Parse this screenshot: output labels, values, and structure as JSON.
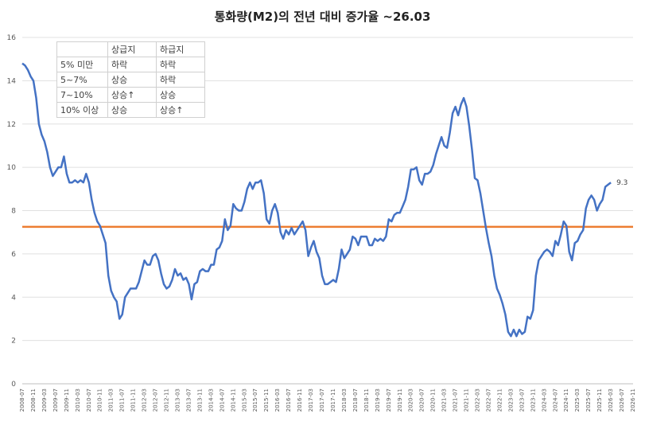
{
  "chart_data": {
    "type": "line",
    "title": "통화량(M2)의 전년 대비 증가율 ~26.03",
    "ylim": [
      0,
      16
    ],
    "yticks": [
      "0",
      "2",
      "4",
      "6",
      "8",
      "10",
      "12",
      "14",
      "16"
    ],
    "xlim": [
      "2008-07",
      "2026-11"
    ],
    "xticks": [
      "2008-07",
      "2008-11",
      "2009-03",
      "2009-07",
      "2009-11",
      "2010-03",
      "2010-07",
      "2010-11",
      "2011-03",
      "2011-07",
      "2011-11",
      "2012-03",
      "2012-07",
      "2012-11",
      "2013-03",
      "2013-07",
      "2013-11",
      "2014-03",
      "2014-07",
      "2014-11",
      "2015-03",
      "2015-07",
      "2015-11",
      "2016-03",
      "2016-07",
      "2016-11",
      "2017-03",
      "2017-07",
      "2017-11",
      "2018-03",
      "2018-07",
      "2018-11",
      "2019-03",
      "2019-07",
      "2019-11",
      "2020-03",
      "2020-07",
      "2020-11",
      "2021-03",
      "2021-07",
      "2021-11",
      "2022-03",
      "2022-07",
      "2022-11",
      "2023-03",
      "2023-07",
      "2023-11",
      "2024-03",
      "2024-07",
      "2024-11",
      "2025-03",
      "2025-07",
      "2025-11",
      "2026-03",
      "2026-07",
      "2026-11"
    ],
    "series": [
      {
        "color": "#4472C4",
        "points": [
          [
            "2008-07",
            14.8
          ],
          [
            "2008-08",
            14.7
          ],
          [
            "2008-09",
            14.5
          ],
          [
            "2008-10",
            14.2
          ],
          [
            "2008-11",
            14.0
          ],
          [
            "2008-12",
            13.2
          ],
          [
            "2009-01",
            12.0
          ],
          [
            "2009-02",
            11.5
          ],
          [
            "2009-03",
            11.2
          ],
          [
            "2009-04",
            10.7
          ],
          [
            "2009-05",
            10.0
          ],
          [
            "2009-06",
            9.6
          ],
          [
            "2009-07",
            9.8
          ],
          [
            "2009-08",
            10.0
          ],
          [
            "2009-09",
            10.0
          ],
          [
            "2009-10",
            10.5
          ],
          [
            "2009-11",
            9.7
          ],
          [
            "2009-12",
            9.3
          ],
          [
            "2010-01",
            9.3
          ],
          [
            "2010-02",
            9.4
          ],
          [
            "2010-03",
            9.3
          ],
          [
            "2010-04",
            9.4
          ],
          [
            "2010-05",
            9.3
          ],
          [
            "2010-06",
            9.7
          ],
          [
            "2010-07",
            9.3
          ],
          [
            "2010-08",
            8.5
          ],
          [
            "2010-09",
            7.9
          ],
          [
            "2010-10",
            7.5
          ],
          [
            "2010-11",
            7.3
          ],
          [
            "2010-12",
            6.9
          ],
          [
            "2011-01",
            6.5
          ],
          [
            "2011-02",
            5.0
          ],
          [
            "2011-03",
            4.3
          ],
          [
            "2011-04",
            4.0
          ],
          [
            "2011-05",
            3.8
          ],
          [
            "2011-06",
            3.0
          ],
          [
            "2011-07",
            3.2
          ],
          [
            "2011-08",
            4.0
          ],
          [
            "2011-09",
            4.2
          ],
          [
            "2011-10",
            4.4
          ],
          [
            "2011-11",
            4.4
          ],
          [
            "2011-12",
            4.4
          ],
          [
            "2012-01",
            4.7
          ],
          [
            "2012-02",
            5.2
          ],
          [
            "2012-03",
            5.7
          ],
          [
            "2012-04",
            5.5
          ],
          [
            "2012-05",
            5.5
          ],
          [
            "2012-06",
            5.9
          ],
          [
            "2012-07",
            6.0
          ],
          [
            "2012-08",
            5.7
          ],
          [
            "2012-09",
            5.1
          ],
          [
            "2012-10",
            4.6
          ],
          [
            "2012-11",
            4.4
          ],
          [
            "2012-12",
            4.5
          ],
          [
            "2013-01",
            4.8
          ],
          [
            "2013-02",
            5.3
          ],
          [
            "2013-03",
            5.0
          ],
          [
            "2013-04",
            5.1
          ],
          [
            "2013-05",
            4.8
          ],
          [
            "2013-06",
            4.9
          ],
          [
            "2013-07",
            4.6
          ],
          [
            "2013-08",
            3.9
          ],
          [
            "2013-09",
            4.6
          ],
          [
            "2013-10",
            4.7
          ],
          [
            "2013-11",
            5.2
          ],
          [
            "2013-12",
            5.3
          ],
          [
            "2014-01",
            5.2
          ],
          [
            "2014-02",
            5.2
          ],
          [
            "2014-03",
            5.5
          ],
          [
            "2014-04",
            5.5
          ],
          [
            "2014-05",
            6.2
          ],
          [
            "2014-06",
            6.3
          ],
          [
            "2014-07",
            6.6
          ],
          [
            "2014-08",
            7.6
          ],
          [
            "2014-09",
            7.1
          ],
          [
            "2014-10",
            7.3
          ],
          [
            "2014-11",
            8.3
          ],
          [
            "2014-12",
            8.1
          ],
          [
            "2015-01",
            8.0
          ],
          [
            "2015-02",
            8.0
          ],
          [
            "2015-03",
            8.4
          ],
          [
            "2015-04",
            9.0
          ],
          [
            "2015-05",
            9.3
          ],
          [
            "2015-06",
            9.0
          ],
          [
            "2015-07",
            9.3
          ],
          [
            "2015-08",
            9.3
          ],
          [
            "2015-09",
            9.4
          ],
          [
            "2015-10",
            8.8
          ],
          [
            "2015-11",
            7.6
          ],
          [
            "2015-12",
            7.4
          ],
          [
            "2016-01",
            8.0
          ],
          [
            "2016-02",
            8.3
          ],
          [
            "2016-03",
            7.9
          ],
          [
            "2016-04",
            7.0
          ],
          [
            "2016-05",
            6.7
          ],
          [
            "2016-06",
            7.1
          ],
          [
            "2016-07",
            6.9
          ],
          [
            "2016-08",
            7.2
          ],
          [
            "2016-09",
            6.9
          ],
          [
            "2016-10",
            7.1
          ],
          [
            "2016-11",
            7.3
          ],
          [
            "2016-12",
            7.5
          ],
          [
            "2017-01",
            7.1
          ],
          [
            "2017-02",
            5.9
          ],
          [
            "2017-03",
            6.3
          ],
          [
            "2017-04",
            6.6
          ],
          [
            "2017-05",
            6.1
          ],
          [
            "2017-06",
            5.8
          ],
          [
            "2017-07",
            5.0
          ],
          [
            "2017-08",
            4.6
          ],
          [
            "2017-09",
            4.6
          ],
          [
            "2017-10",
            4.7
          ],
          [
            "2017-11",
            4.8
          ],
          [
            "2017-12",
            4.7
          ],
          [
            "2018-01",
            5.3
          ],
          [
            "2018-02",
            6.2
          ],
          [
            "2018-03",
            5.8
          ],
          [
            "2018-04",
            6.0
          ],
          [
            "2018-05",
            6.2
          ],
          [
            "2018-06",
            6.8
          ],
          [
            "2018-07",
            6.7
          ],
          [
            "2018-08",
            6.4
          ],
          [
            "2018-09",
            6.8
          ],
          [
            "2018-10",
            6.8
          ],
          [
            "2018-11",
            6.8
          ],
          [
            "2018-12",
            6.4
          ],
          [
            "2019-01",
            6.4
          ],
          [
            "2019-02",
            6.7
          ],
          [
            "2019-03",
            6.6
          ],
          [
            "2019-04",
            6.7
          ],
          [
            "2019-05",
            6.6
          ],
          [
            "2019-06",
            6.8
          ],
          [
            "2019-07",
            7.6
          ],
          [
            "2019-08",
            7.5
          ],
          [
            "2019-09",
            7.8
          ],
          [
            "2019-10",
            7.9
          ],
          [
            "2019-11",
            7.9
          ],
          [
            "2019-12",
            8.2
          ],
          [
            "2020-01",
            8.5
          ],
          [
            "2020-02",
            9.1
          ],
          [
            "2020-03",
            9.9
          ],
          [
            "2020-04",
            9.9
          ],
          [
            "2020-05",
            10.0
          ],
          [
            "2020-06",
            9.4
          ],
          [
            "2020-07",
            9.2
          ],
          [
            "2020-08",
            9.7
          ],
          [
            "2020-09",
            9.7
          ],
          [
            "2020-10",
            9.8
          ],
          [
            "2020-11",
            10.1
          ],
          [
            "2020-12",
            10.6
          ],
          [
            "2021-01",
            11.0
          ],
          [
            "2021-02",
            11.4
          ],
          [
            "2021-03",
            11.0
          ],
          [
            "2021-04",
            10.9
          ],
          [
            "2021-05",
            11.6
          ],
          [
            "2021-06",
            12.5
          ],
          [
            "2021-07",
            12.8
          ],
          [
            "2021-08",
            12.4
          ],
          [
            "2021-09",
            12.9
          ],
          [
            "2021-10",
            13.2
          ],
          [
            "2021-11",
            12.8
          ],
          [
            "2021-12",
            11.9
          ],
          [
            "2022-01",
            10.8
          ],
          [
            "2022-02",
            9.5
          ],
          [
            "2022-03",
            9.4
          ],
          [
            "2022-04",
            8.8
          ],
          [
            "2022-05",
            8.0
          ],
          [
            "2022-06",
            7.2
          ],
          [
            "2022-07",
            6.5
          ],
          [
            "2022-08",
            5.9
          ],
          [
            "2022-09",
            5.0
          ],
          [
            "2022-10",
            4.4
          ],
          [
            "2022-11",
            4.1
          ],
          [
            "2022-12",
            3.7
          ],
          [
            "2023-01",
            3.2
          ],
          [
            "2023-02",
            2.4
          ],
          [
            "2023-03",
            2.2
          ],
          [
            "2023-04",
            2.5
          ],
          [
            "2023-05",
            2.2
          ],
          [
            "2023-06",
            2.5
          ],
          [
            "2023-07",
            2.3
          ],
          [
            "2023-08",
            2.4
          ],
          [
            "2023-09",
            3.1
          ],
          [
            "2023-10",
            3.0
          ],
          [
            "2023-11",
            3.4
          ],
          [
            "2023-12",
            5.0
          ],
          [
            "2024-01",
            5.7
          ],
          [
            "2024-02",
            5.9
          ],
          [
            "2024-03",
            6.1
          ],
          [
            "2024-04",
            6.2
          ],
          [
            "2024-05",
            6.1
          ],
          [
            "2024-06",
            5.9
          ],
          [
            "2024-07",
            6.6
          ],
          [
            "2024-08",
            6.4
          ],
          [
            "2024-09",
            6.9
          ],
          [
            "2024-10",
            7.5
          ],
          [
            "2024-11",
            7.3
          ],
          [
            "2024-12",
            6.1
          ],
          [
            "2025-01",
            5.7
          ],
          [
            "2025-02",
            6.5
          ],
          [
            "2025-03",
            6.6
          ],
          [
            "2025-04",
            6.9
          ],
          [
            "2025-05",
            7.1
          ],
          [
            "2025-06",
            8.1
          ],
          [
            "2025-07",
            8.5
          ],
          [
            "2025-08",
            8.7
          ],
          [
            "2025-09",
            8.5
          ],
          [
            "2025-10",
            8.0
          ],
          [
            "2025-11",
            8.3
          ],
          [
            "2025-12",
            8.5
          ],
          [
            "2026-01",
            9.1
          ],
          [
            "2026-02",
            9.2
          ],
          [
            "2026-03",
            9.3
          ]
        ]
      }
    ],
    "reference_line": {
      "y": 7.25,
      "color": "#ED7D31"
    },
    "end_label": "9.3",
    "grid": "horizontal"
  },
  "legend_table": {
    "header": [
      "",
      "상급지",
      "하급지"
    ],
    "rows": [
      [
        "5% 미만",
        "하락",
        "하락"
      ],
      [
        "5~7%",
        "상승",
        "하락"
      ],
      [
        "7~10%",
        "상승↑",
        "상승"
      ],
      [
        "10% 이상",
        "상승",
        "상승↑"
      ]
    ]
  }
}
